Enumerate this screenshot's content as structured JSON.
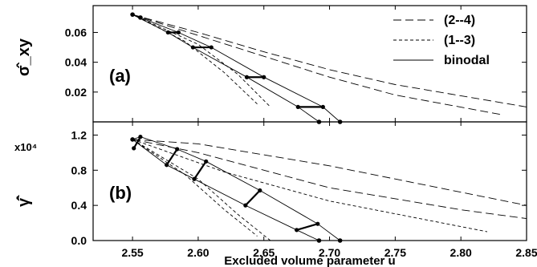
{
  "chart_data": [
    {
      "type": "line",
      "panel_label": "(a)",
      "ylabel": "σ̂_xy",
      "xlim": [
        2.52,
        2.85
      ],
      "ylim": [
        0.0,
        0.078
      ],
      "y_ticks": [
        "0.02",
        "0.04",
        "0.06"
      ],
      "legend": {
        "placement": "top-right",
        "entries": [
          {
            "label": "(2--4)",
            "style": "long-dash"
          },
          {
            "label": "(1--3)",
            "style": "short-dash"
          },
          {
            "label": "binodal",
            "style": "solid"
          }
        ]
      },
      "series": [
        {
          "legend": "(2--4)",
          "style": "long-dash",
          "x": [
            2.55,
            2.6,
            2.65,
            2.7,
            2.75,
            2.85
          ],
          "y": [
            0.072,
            0.06,
            0.047,
            0.035,
            0.025,
            0.01
          ]
        },
        {
          "legend": "(2--4)",
          "style": "long-dash",
          "x": [
            2.55,
            2.6,
            2.65,
            2.7,
            2.75,
            2.83
          ],
          "y": [
            0.072,
            0.058,
            0.044,
            0.03,
            0.018,
            0.005
          ]
        },
        {
          "legend": "(1--3)",
          "style": "short-dash",
          "x": [
            2.55,
            2.59,
            2.62,
            2.645
          ],
          "y": [
            0.072,
            0.054,
            0.033,
            0.012
          ]
        },
        {
          "legend": "(1--3)",
          "style": "short-dash",
          "x": [
            2.55,
            2.6,
            2.63,
            2.655
          ],
          "y": [
            0.072,
            0.052,
            0.032,
            0.01
          ]
        },
        {
          "legend": "binodal",
          "style": "solid",
          "x": [
            2.55,
            2.577,
            2.596,
            2.637,
            2.676,
            2.692
          ],
          "y": [
            0.072,
            0.06,
            0.05,
            0.03,
            0.01,
            0.0
          ]
        },
        {
          "legend": "binodal",
          "style": "solid",
          "x": [
            2.55,
            2.585,
            2.61,
            2.65,
            2.695,
            2.708
          ],
          "y": [
            0.072,
            0.06,
            0.05,
            0.03,
            0.01,
            0.0
          ]
        }
      ],
      "tie_lines": [
        {
          "x": [
            2.577,
            2.585
          ],
          "y": [
            0.06,
            0.06
          ]
        },
        {
          "x": [
            2.596,
            2.61
          ],
          "y": [
            0.05,
            0.05
          ]
        },
        {
          "x": [
            2.637,
            2.65
          ],
          "y": [
            0.03,
            0.03
          ]
        },
        {
          "x": [
            2.676,
            2.695
          ],
          "y": [
            0.01,
            0.01
          ]
        }
      ],
      "points": [
        {
          "x": 2.55,
          "y": 0.072
        },
        {
          "x": 2.556,
          "y": 0.07
        },
        {
          "x": 2.692,
          "y": 0.0
        },
        {
          "x": 2.708,
          "y": 0.0
        }
      ]
    },
    {
      "type": "line",
      "panel_label": "(b)",
      "ylabel": "γ̇̂",
      "y_multiplier": "x10⁴",
      "xlabel": "Excluded volume parameter u",
      "xlim": [
        2.52,
        2.85
      ],
      "ylim": [
        0.0,
        1.35
      ],
      "x_ticks": [
        "2.55",
        "2.60",
        "2.65",
        "2.70",
        "2.75",
        "2.80",
        "2.85"
      ],
      "y_ticks": [
        "0.0",
        "0.4",
        "0.8",
        "1.2"
      ],
      "series": [
        {
          "legend": "(2--4)",
          "style": "long-dash",
          "x": [
            2.55,
            2.6,
            2.7,
            2.8,
            2.85
          ],
          "y": [
            1.15,
            1.1,
            0.85,
            0.55,
            0.4
          ]
        },
        {
          "legend": "(2--4)",
          "style": "long-dash",
          "x": [
            2.55,
            2.6,
            2.7,
            2.8,
            2.85
          ],
          "y": [
            1.15,
            1.0,
            0.6,
            0.35,
            0.25
          ]
        },
        {
          "legend": "(1--3)",
          "style": "short-dash",
          "x": [
            2.55,
            2.62,
            2.7,
            2.82
          ],
          "y": [
            1.15,
            0.78,
            0.45,
            0.1
          ]
        },
        {
          "legend": "(1--3)",
          "style": "short-dash",
          "x": [
            2.55,
            2.6,
            2.63,
            2.655
          ],
          "y": [
            1.15,
            0.7,
            0.3,
            0.0
          ]
        },
        {
          "legend": "(1--3)",
          "style": "short-dash",
          "x": [
            2.55,
            2.59,
            2.62,
            2.645
          ],
          "y": [
            1.15,
            0.75,
            0.35,
            0.05
          ]
        },
        {
          "legend": "binodal",
          "style": "solid",
          "x": [
            2.55,
            2.576,
            2.597,
            2.636,
            2.675,
            2.692
          ],
          "y": [
            1.15,
            0.86,
            0.7,
            0.4,
            0.12,
            0.0
          ]
        },
        {
          "legend": "binodal",
          "style": "solid",
          "x": [
            2.55,
            2.556,
            2.584,
            2.606,
            2.647,
            2.691,
            2.708
          ],
          "y": [
            1.15,
            1.18,
            1.04,
            0.9,
            0.57,
            0.19,
            0.0
          ]
        }
      ],
      "tie_lines": [
        {
          "x": [
            2.551,
            2.556
          ],
          "y": [
            1.05,
            1.18
          ]
        },
        {
          "x": [
            2.576,
            2.584
          ],
          "y": [
            0.86,
            1.04
          ]
        },
        {
          "x": [
            2.597,
            2.606
          ],
          "y": [
            0.7,
            0.9
          ]
        },
        {
          "x": [
            2.636,
            2.647
          ],
          "y": [
            0.4,
            0.57
          ]
        },
        {
          "x": [
            2.675,
            2.691
          ],
          "y": [
            0.12,
            0.19
          ]
        }
      ],
      "points": [
        {
          "x": 2.55,
          "y": 1.15
        },
        {
          "x": 2.692,
          "y": 0.0
        },
        {
          "x": 2.708,
          "y": 0.0
        }
      ]
    }
  ]
}
